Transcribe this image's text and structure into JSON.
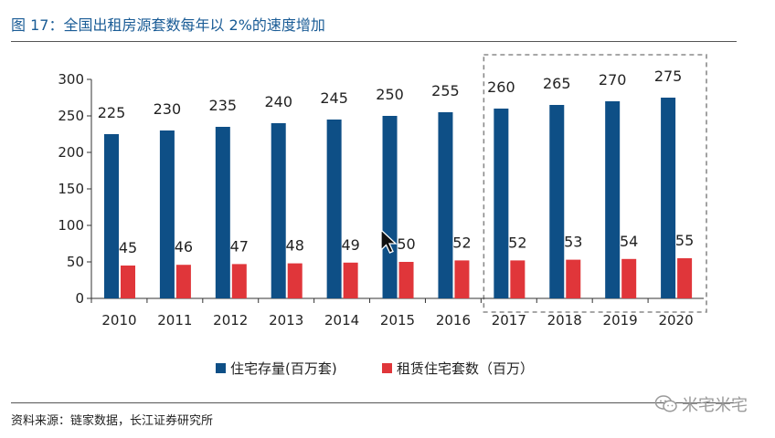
{
  "figure": {
    "title": "图  17：全国出租房源套数每年以 2%的速度增加",
    "source": "资料来源：链家数据，长江证券研究所",
    "watermark": "米宅米宅"
  },
  "chart_data": {
    "type": "bar",
    "categories": [
      "2010",
      "2011",
      "2012",
      "2013",
      "2014",
      "2015",
      "2016",
      "2017",
      "2018",
      "2019",
      "2020"
    ],
    "series": [
      {
        "name": "住宅存量(百万套)",
        "color": "#0e4f86",
        "values": [
          225,
          230,
          235,
          240,
          245,
          250,
          255,
          260,
          265,
          270,
          275
        ]
      },
      {
        "name": "租赁住宅套数（百万）",
        "color": "#e0363a",
        "values": [
          45,
          46,
          47,
          48,
          49,
          50,
          52,
          52,
          53,
          54,
          55
        ]
      }
    ],
    "ylim": [
      0,
      300
    ],
    "yticks": [
      0,
      50,
      100,
      150,
      200,
      250,
      300
    ],
    "grid": false,
    "legend_position": "bottom",
    "highlight": {
      "categories": [
        "2017",
        "2018",
        "2019",
        "2020"
      ],
      "style": "dashed-box"
    }
  }
}
